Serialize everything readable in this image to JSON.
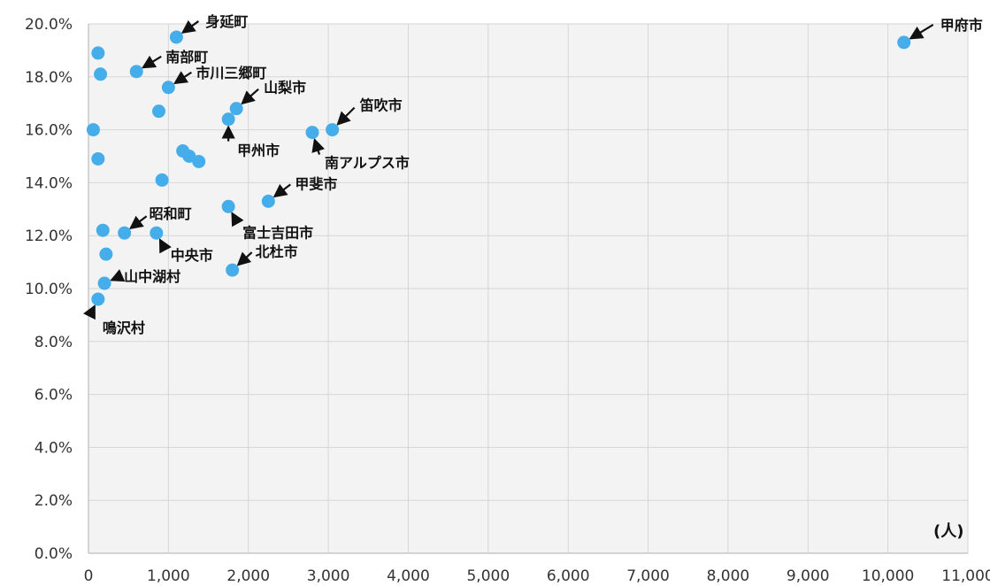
{
  "chart_data": {
    "type": "scatter",
    "title": "",
    "xlabel": "(人)",
    "ylabel": "",
    "xlim": [
      0,
      11000
    ],
    "ylim": [
      0,
      20
    ],
    "grid": true,
    "legend": "none",
    "point_color": "#45aeea",
    "grid_color": "#d6d6d6",
    "plot_bg": "#f3f3f3",
    "x_ticks": [
      0,
      1000,
      2000,
      3000,
      4000,
      5000,
      6000,
      7000,
      8000,
      9000,
      10000,
      11000
    ],
    "x_tick_labels": [
      "0",
      "1,000",
      "2,000",
      "3,000",
      "4,000",
      "5,000",
      "6,000",
      "7,000",
      "8,000",
      "9,000",
      "10,000",
      "11,000"
    ],
    "y_ticks": [
      0,
      2,
      4,
      6,
      8,
      10,
      12,
      14,
      16,
      18,
      20
    ],
    "y_tick_labels": [
      "0.0%",
      "2.0%",
      "4.0%",
      "6.0%",
      "8.0%",
      "10.0%",
      "12.0%",
      "14.0%",
      "16.0%",
      "18.0%",
      "20.0%"
    ],
    "points": [
      {
        "x": 10200,
        "y": 19.3,
        "label": "甲府市"
      },
      {
        "x": 1100,
        "y": 19.5,
        "label": "身延町"
      },
      {
        "x": 600,
        "y": 18.2,
        "label": "南部町"
      },
      {
        "x": 1000,
        "y": 17.6,
        "label": "市川三郷町"
      },
      {
        "x": 1850,
        "y": 16.8,
        "label": "山梨市"
      },
      {
        "x": 1750,
        "y": 16.4,
        "label": "甲州市"
      },
      {
        "x": 3050,
        "y": 16.0,
        "label": "笛吹市"
      },
      {
        "x": 2800,
        "y": 15.9,
        "label": "南アルプス市"
      },
      {
        "x": 2250,
        "y": 13.3,
        "label": "甲斐市"
      },
      {
        "x": 1750,
        "y": 13.1,
        "label": "富士吉田市"
      },
      {
        "x": 450,
        "y": 12.1,
        "label": "昭和町"
      },
      {
        "x": 850,
        "y": 12.1,
        "label": "中央市"
      },
      {
        "x": 1800,
        "y": 10.7,
        "label": "北杜市"
      },
      {
        "x": 200,
        "y": 10.2,
        "label": "山中湖村"
      },
      {
        "x": 120,
        "y": 9.6,
        "label": "鳴沢村"
      },
      {
        "x": 120,
        "y": 18.9,
        "label": ""
      },
      {
        "x": 150,
        "y": 18.1,
        "label": ""
      },
      {
        "x": 880,
        "y": 16.7,
        "label": ""
      },
      {
        "x": 60,
        "y": 16.0,
        "label": ""
      },
      {
        "x": 1180,
        "y": 15.2,
        "label": ""
      },
      {
        "x": 1260,
        "y": 15.0,
        "label": ""
      },
      {
        "x": 1380,
        "y": 14.8,
        "label": ""
      },
      {
        "x": 120,
        "y": 14.9,
        "label": ""
      },
      {
        "x": 920,
        "y": 14.1,
        "label": ""
      },
      {
        "x": 180,
        "y": 12.2,
        "label": ""
      },
      {
        "x": 220,
        "y": 11.3,
        "label": ""
      }
    ]
  }
}
